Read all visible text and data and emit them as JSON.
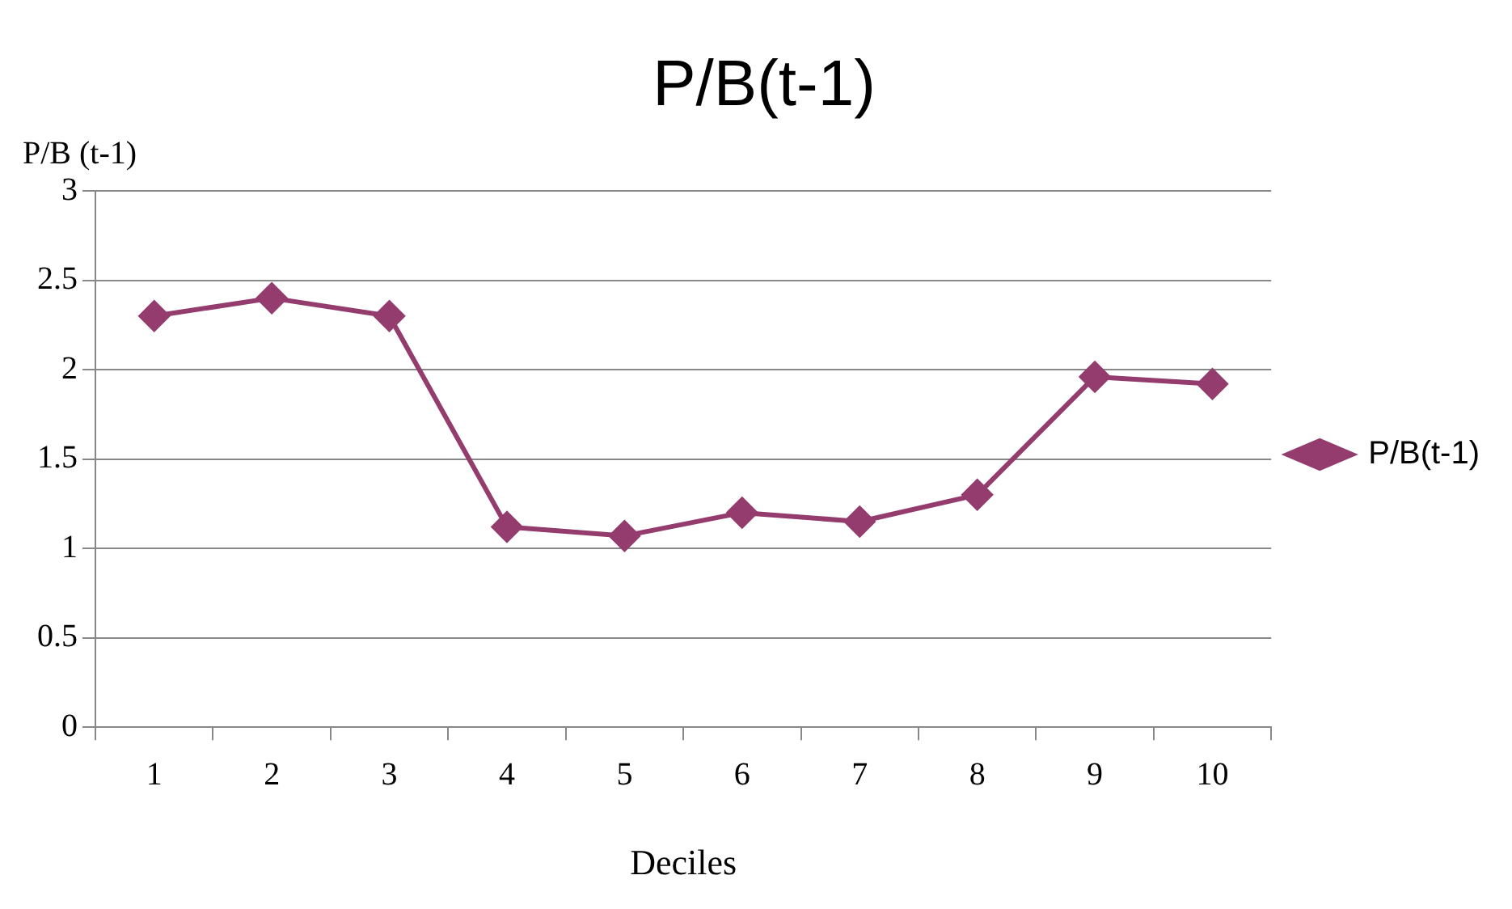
{
  "chart_data": {
    "type": "line",
    "title": "P/B(t-1)",
    "xlabel": "Deciles",
    "ylabel": "P/B (t-1)",
    "categories": [
      "1",
      "2",
      "3",
      "4",
      "5",
      "6",
      "7",
      "8",
      "9",
      "10"
    ],
    "series": [
      {
        "name": "P/B(t-1)",
        "color": "#943c6e",
        "values": [
          2.3,
          2.4,
          2.3,
          1.12,
          1.07,
          1.2,
          1.15,
          1.3,
          1.96,
          1.92
        ]
      }
    ],
    "ylim": [
      0,
      3
    ],
    "yticks": [
      0,
      0.5,
      1,
      1.5,
      2,
      2.5,
      3
    ],
    "grid": "y",
    "legend": "right",
    "marker": "diamond",
    "line_style": "solid"
  }
}
